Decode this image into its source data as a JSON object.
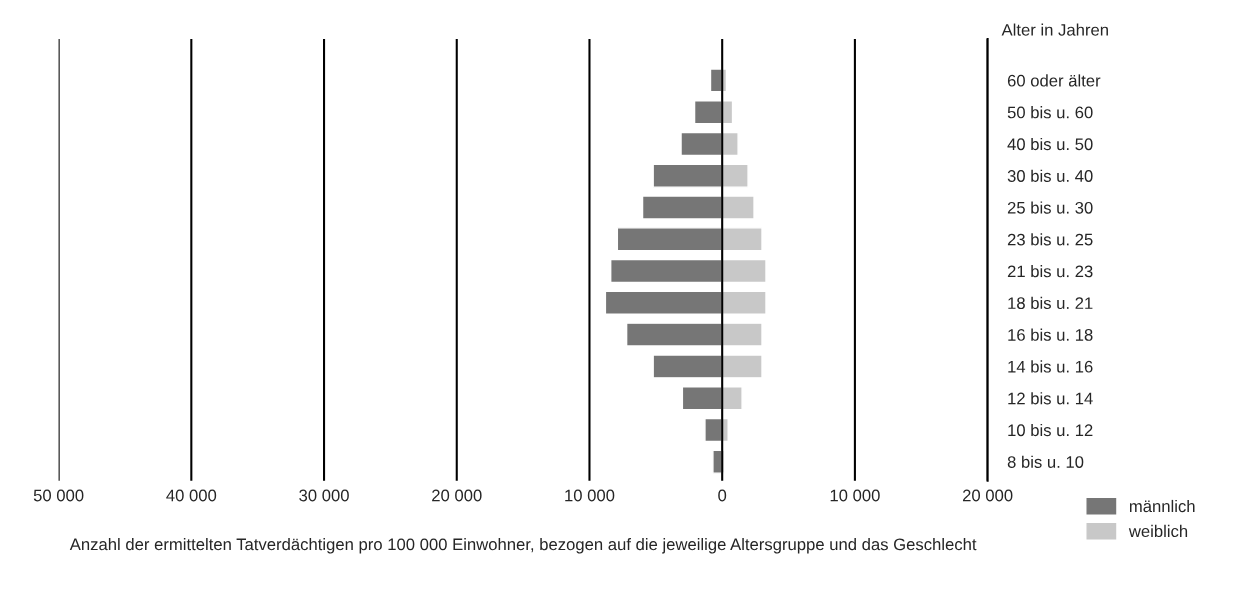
{
  "chart_data": {
    "type": "bar",
    "orientation": "horizontal",
    "stacked": true,
    "xlabel": "Anzahl der ermittelten Tatverdächtigen pro 100 000 Einwohner, bezogen auf die jeweilige Altersgruppe und das Geschlecht",
    "ylabel": "Alter in Jahren",
    "categories": [
      "60 oder älter",
      "50 bis u. 60",
      "40 bis u. 50",
      "30 bis u. 40",
      "25 bis u. 30",
      "23 bis u. 25",
      "21 bis u. 23",
      "18 bis u. 21",
      "16 bis u. 18",
      "14 bis u. 16",
      "12 bis u. 14",
      "10 bis u. 12",
      "8 bis u. 10"
    ],
    "series": [
      {
        "name": "männlich",
        "color": "#767676",
        "values": [
          -880,
          -2080,
          -3100,
          -5200,
          -6000,
          -7900,
          -8400,
          -8800,
          -7200,
          -5200,
          -3000,
          -1300,
          -700
        ]
      },
      {
        "name": "weiblich",
        "color": "#c8c8c8",
        "values": [
          320,
          780,
          1200,
          1950,
          2400,
          3000,
          3300,
          3300,
          3000,
          3000,
          1500,
          450,
          150
        ]
      }
    ],
    "xlim": [
      -50000,
      20000
    ],
    "xticks": [
      {
        "value": -50000,
        "label": "50 000"
      },
      {
        "value": -40000,
        "label": "40 000"
      },
      {
        "value": -30000,
        "label": "30 000"
      },
      {
        "value": -20000,
        "label": "20 000"
      },
      {
        "value": -10000,
        "label": "10 000"
      },
      0,
      {
        "value": 10000,
        "label": "10 000"
      },
      {
        "value": 20000,
        "label": "20 000"
      }
    ],
    "grid": "x",
    "legend": "bottom right"
  }
}
